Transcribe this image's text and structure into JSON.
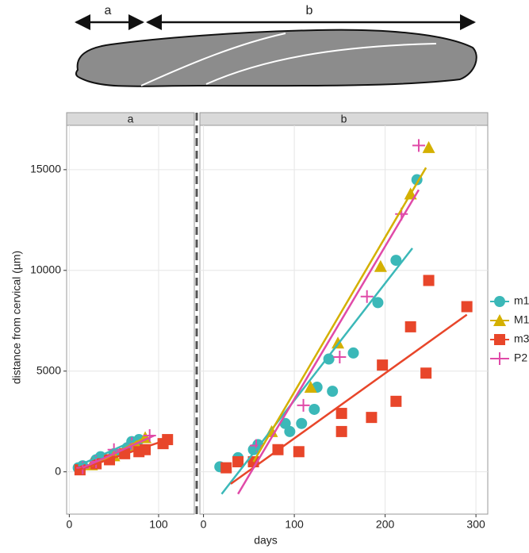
{
  "chart_data": [
    {
      "type": "scatter",
      "title": "a",
      "ylabel": "distance from cervical (µm)",
      "xlim": [
        -3,
        140
      ],
      "xticks": [
        0,
        100
      ],
      "ylim": [
        -2100,
        17200
      ],
      "yticks": [
        0,
        5000,
        10000,
        15000
      ],
      "grid": true,
      "legend": "right",
      "series": [
        {
          "name": "m1",
          "color": "#3bb8b8",
          "marker": "circle",
          "x": [
            10,
            15,
            30,
            35,
            50,
            65,
            70,
            78
          ],
          "values": [
            200,
            300,
            600,
            750,
            900,
            1200,
            1500,
            1600
          ],
          "trend": {
            "x": [
              10,
              80
            ],
            "values": [
              300,
              1700
            ]
          }
        },
        {
          "name": "M1",
          "color": "#d4b000",
          "marker": "triangle",
          "x": [
            25,
            50,
            75,
            85
          ],
          "values": [
            350,
            800,
            1300,
            1700
          ],
          "trend": {
            "x": [
              25,
              85
            ],
            "values": [
              300,
              1700
            ]
          }
        },
        {
          "name": "m3",
          "color": "#e8462a",
          "marker": "square",
          "x": [
            12,
            30,
            45,
            62,
            78,
            85,
            105,
            110
          ],
          "values": [
            100,
            400,
            600,
            900,
            1000,
            1100,
            1400,
            1600
          ],
          "trend": {
            "x": [
              10,
              110
            ],
            "values": [
              100,
              1600
            ]
          }
        },
        {
          "name": "P2",
          "color": "#e04aa8",
          "marker": "plus",
          "x": [
            15,
            30,
            50,
            70,
            90
          ],
          "values": [
            200,
            500,
            1100,
            1400,
            1800
          ],
          "trend": {
            "x": [
              15,
              95
            ],
            "values": [
              200,
              1800
            ]
          }
        }
      ]
    },
    {
      "type": "scatter",
      "title": "b",
      "xlabel": "days",
      "xlim": [
        -4,
        313
      ],
      "xticks": [
        0,
        100,
        200,
        300
      ],
      "ylim": [
        -2100,
        17200
      ],
      "yticks": [
        0,
        5000,
        10000,
        15000
      ],
      "grid": true,
      "series": [
        {
          "name": "m1",
          "color": "#3bb8b8",
          "marker": "circle",
          "x": [
            18,
            38,
            55,
            60,
            90,
            95,
            108,
            122,
            125,
            138,
            142,
            165,
            192,
            212,
            235
          ],
          "values": [
            250,
            700,
            1100,
            1350,
            2400,
            2000,
            2400,
            3100,
            4200,
            5600,
            4000,
            5900,
            8400,
            10500,
            14500
          ],
          "trend": {
            "x": [
              20,
              230
            ],
            "values": [
              -1100,
              11100
            ]
          }
        },
        {
          "name": "M1",
          "color": "#d4b000",
          "marker": "triangle",
          "x": [
            75,
            118,
            148,
            195,
            228,
            248
          ],
          "values": [
            2000,
            4200,
            6400,
            10200,
            13800,
            16100
          ],
          "trend": {
            "x": [
              55,
              245
            ],
            "values": [
              500,
              15100
            ]
          }
        },
        {
          "name": "m3",
          "color": "#e8462a",
          "marker": "square",
          "x": [
            25,
            38,
            55,
            82,
            105,
            152,
            152,
            185,
            197,
            212,
            228,
            245,
            248,
            290
          ],
          "values": [
            200,
            500,
            500,
            1100,
            1000,
            2900,
            2000,
            2700,
            5300,
            3500,
            7200,
            4900,
            9500,
            8200
          ],
          "trend": {
            "x": [
              30,
              290
            ],
            "values": [
              -600,
              7800
            ]
          }
        },
        {
          "name": "P2",
          "color": "#e04aa8",
          "marker": "plus",
          "x": [
            58,
            110,
            150,
            180,
            218,
            237
          ],
          "values": [
            1300,
            3300,
            5700,
            8700,
            12800,
            16200
          ],
          "trend": {
            "x": [
              38,
              237
            ],
            "values": [
              -1100,
              14000
            ]
          }
        }
      ]
    }
  ]
}
